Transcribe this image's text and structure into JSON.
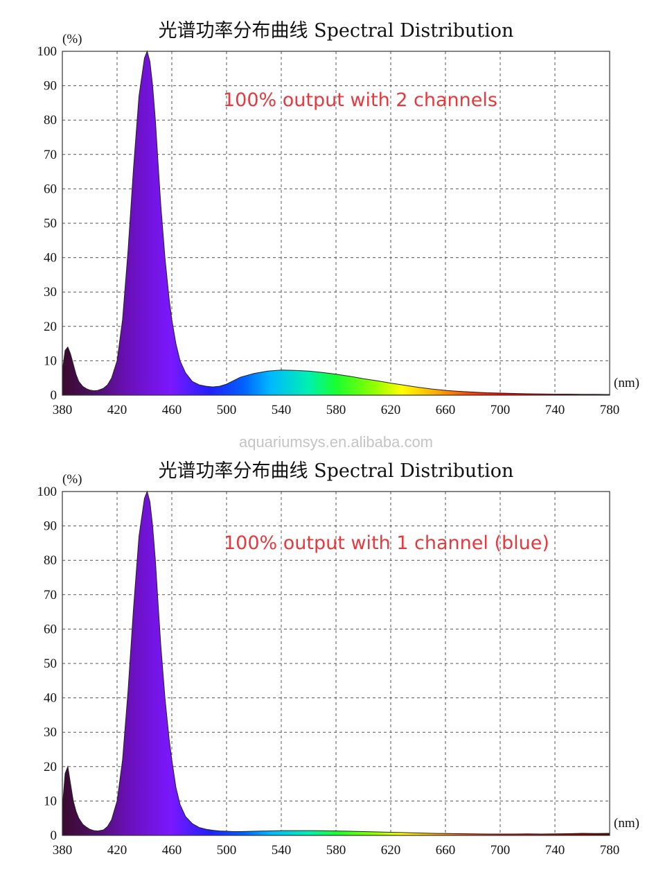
{
  "watermark": "aquariumsys.en.alibaba.com",
  "colors": {
    "annotation": "#e8383d",
    "watermark": "#c4c4c4",
    "grid": "#555555"
  },
  "chart_data": [
    {
      "type": "area",
      "title": "光谱功率分布曲线 Spectral Distribution",
      "ylabel": "(%)",
      "xlabel": "(nm)",
      "annotation": "100% output with 2 channels",
      "xlim": [
        380,
        780
      ],
      "ylim": [
        0,
        100
      ],
      "xticks": [
        "380",
        "420",
        "460",
        "500",
        "540",
        "580",
        "620",
        "660",
        "700",
        "740",
        "780"
      ],
      "yticks": [
        "0",
        "10",
        "20",
        "30",
        "40",
        "50",
        "60",
        "70",
        "80",
        "90",
        "100"
      ],
      "grid": true,
      "fill": "visible-spectrum-gradient",
      "series": [
        {
          "x": [
            380,
            382,
            384,
            386,
            388,
            390,
            392,
            395,
            398,
            400,
            403,
            406,
            410,
            413,
            416,
            420,
            424,
            428,
            432,
            436,
            440,
            442,
            444,
            446,
            448,
            450,
            452,
            455,
            458,
            460,
            463,
            466,
            470,
            475,
            480,
            485,
            490,
            495,
            500,
            505,
            510,
            520,
            530,
            540,
            550,
            560,
            570,
            580,
            590,
            600,
            610,
            620,
            630,
            640,
            650,
            660,
            670,
            680,
            690,
            700,
            710,
            720,
            730,
            740,
            750,
            760,
            770,
            780
          ],
          "y": [
            7,
            13,
            14,
            12,
            9,
            6,
            4,
            2.5,
            1.8,
            1.5,
            1.3,
            1.4,
            2,
            3,
            5,
            10,
            22,
            42,
            66,
            87,
            98,
            100,
            97,
            90,
            80,
            67,
            55,
            40,
            28,
            22,
            15,
            10,
            6.5,
            4,
            3,
            2.6,
            2.4,
            2.6,
            3.2,
            4.2,
            5.2,
            6.3,
            7,
            7.3,
            7.2,
            7,
            6.6,
            6.1,
            5.5,
            4.8,
            4.2,
            3.5,
            2.9,
            2.3,
            1.8,
            1.4,
            1.1,
            0.9,
            0.7,
            0.6,
            0.5,
            0.4,
            0.35,
            0.3,
            0.3,
            0.25,
            0.25,
            0.2
          ]
        }
      ]
    },
    {
      "type": "area",
      "title": "光谱功率分布曲线 Spectral Distribution",
      "ylabel": "(%)",
      "xlabel": "(nm)",
      "annotation": "100% output with 1 channel (blue)",
      "xlim": [
        380,
        780
      ],
      "ylim": [
        0,
        100
      ],
      "xticks": [
        "380",
        "420",
        "460",
        "500",
        "540",
        "580",
        "620",
        "660",
        "700",
        "740",
        "780"
      ],
      "yticks": [
        "0",
        "10",
        "20",
        "30",
        "40",
        "50",
        "60",
        "70",
        "80",
        "90",
        "100"
      ],
      "grid": true,
      "fill": "visible-spectrum-gradient",
      "series": [
        {
          "x": [
            380,
            382,
            384,
            386,
            388,
            390,
            392,
            395,
            398,
            400,
            403,
            406,
            410,
            413,
            416,
            420,
            424,
            428,
            432,
            436,
            440,
            442,
            444,
            446,
            448,
            450,
            452,
            455,
            458,
            460,
            463,
            466,
            470,
            475,
            480,
            485,
            490,
            495,
            500,
            505,
            510,
            520,
            530,
            540,
            550,
            560,
            570,
            580,
            590,
            600,
            610,
            620,
            630,
            640,
            650,
            660,
            670,
            680,
            690,
            700,
            710,
            720,
            730,
            740,
            750,
            760,
            770,
            780
          ],
          "y": [
            8,
            18,
            20,
            15,
            10,
            7,
            5,
            3.2,
            2.3,
            1.8,
            1.4,
            1.3,
            1.6,
            2.6,
            4.6,
            10,
            22,
            42,
            66,
            87,
            98,
            100,
            97,
            90,
            80,
            67,
            55,
            40,
            28,
            22,
            14,
            9,
            5.5,
            3.4,
            2.3,
            1.8,
            1.5,
            1.3,
            1.2,
            1.1,
            1.1,
            1.2,
            1.3,
            1.4,
            1.4,
            1.4,
            1.35,
            1.3,
            1.2,
            1.1,
            1.0,
            0.9,
            0.8,
            0.7,
            0.6,
            0.55,
            0.5,
            0.45,
            0.4,
            0.4,
            0.4,
            0.45,
            0.4,
            0.45,
            0.5,
            0.6,
            0.55,
            0.6
          ]
        }
      ]
    }
  ]
}
